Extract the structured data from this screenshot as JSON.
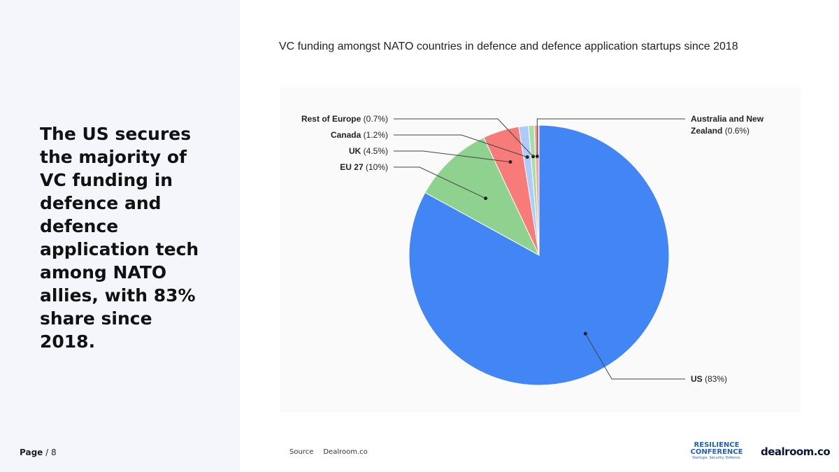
{
  "headline": "The US secures the majority of VC funding in defence and defence application tech among NATO allies, with 83% share since 2018.",
  "page": {
    "label": "Page",
    "total": "/ 8"
  },
  "source": {
    "label": "Source",
    "value": "Dealroom.co"
  },
  "logos": {
    "resilience": "RESILIENCE CONFERENCE",
    "resilience_tag": "Startups. Security. Defence.",
    "dealroom": "dealroom.co"
  },
  "chart_data": {
    "type": "pie",
    "title": "VC funding amongst NATO countries in defence and defence application startups since 2018",
    "start": "12 o'clock, clockwise",
    "slices": [
      {
        "name": "US",
        "value": 83,
        "pct_label": "(83%)",
        "color": "#4285f4"
      },
      {
        "name": "EU 27",
        "value": 10,
        "pct_label": "(10%)",
        "color": "#8fd18f"
      },
      {
        "name": "UK",
        "value": 4.5,
        "pct_label": "(4.5%)",
        "color": "#f77b78"
      },
      {
        "name": "Canada",
        "value": 1.2,
        "pct_label": "(1.2%)",
        "color": "#aecbfa"
      },
      {
        "name": "Rest of Europe",
        "value": 0.7,
        "pct_label": "(0.7%)",
        "color": "#a8dca8"
      },
      {
        "name": "Australia and New Zealand",
        "value": 0.6,
        "pct_label": "(0.6%)",
        "color": "#f4a7a0"
      }
    ]
  }
}
